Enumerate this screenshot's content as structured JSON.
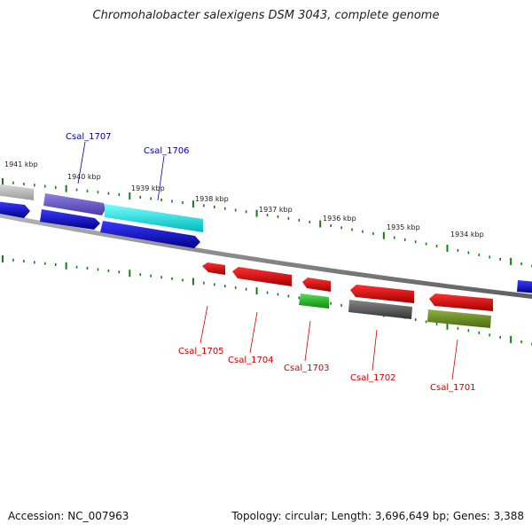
{
  "title": "Chromohalobacter salexigens DSM 3043, complete genome",
  "footer": {
    "accession": "Accession: NC_007963",
    "summary": "Topology: circular; Length: 3,696,649 bp; Genes: 3,388"
  },
  "scale_labels": [
    "1941 kbp",
    "1940 kbp",
    "1939 kbp",
    "1938 kbp",
    "1937 kbp",
    "1936 kbp",
    "1935 kbp",
    "1934 kbp"
  ],
  "genes_top": [
    {
      "label": "Csal_1707",
      "color": "#0000aa"
    },
    {
      "label": "Csal_1706",
      "color": "#0000aa"
    }
  ],
  "genes_bottom": [
    {
      "label": "Csal_1705",
      "color": "#cc0000"
    },
    {
      "label": "Csal_1704",
      "color": "#cc0000"
    },
    {
      "label": "Csal_1703",
      "color": "#cc0000"
    },
    {
      "label": "Csal_1702",
      "color": "#cc0000"
    },
    {
      "label": "Csal_1701",
      "color": "#cc0000"
    }
  ],
  "colors": {
    "tick": "#1a7a1a",
    "backbone": "#8a8a8a",
    "forward_gene": "#0000ee",
    "reverse_gene": "#ee0000",
    "cyan_gene": "#00e5e5",
    "purple_gene": "#6a5acd",
    "gray_gene": "#555555",
    "green_gene": "#22bb22",
    "olive_gene": "#6b8e23",
    "light_gene": "#bbbbbb"
  }
}
